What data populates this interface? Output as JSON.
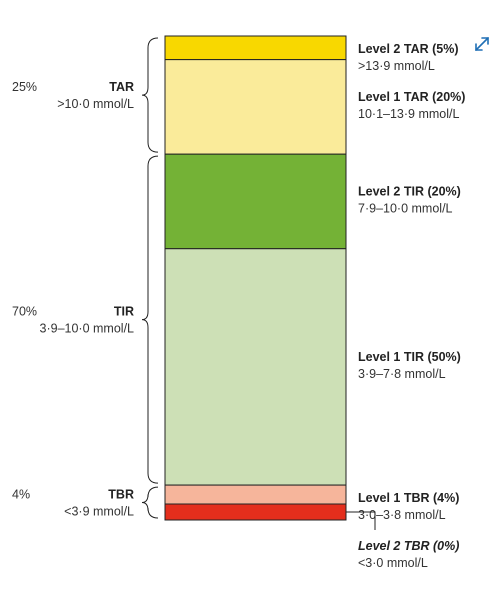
{
  "chart_data": {
    "type": "stacked-bar",
    "unit": "mmol/L",
    "levels": [
      {
        "name": "Level 2 TAR (5%)",
        "range": ">13·9 mmol/L",
        "value": 5,
        "color": "#f8d800",
        "italic": false
      },
      {
        "name": "Level 1 TAR (20%)",
        "range": "10·1–13·9 mmol/L",
        "value": 20,
        "color": "#faeb9a",
        "italic": false
      },
      {
        "name": "Level 2 TIR (20%)",
        "range": "7·9–10·0 mmol/L",
        "value": 20,
        "color": "#74b236",
        "italic": false
      },
      {
        "name": "Level 1 TIR (50%)",
        "range": "3·9–7·8 mmol/L",
        "value": 50,
        "color": "#cde0b6",
        "italic": false
      },
      {
        "name": "Level 1 TBR (4%)",
        "range": "3·0–3·8 mmol/L",
        "value": 4,
        "color": "#f6b59b",
        "italic": false
      },
      {
        "name": "Level 2 TBR (0%)",
        "range": "<3·0 mmol/L",
        "value": 0,
        "color": "#e42e1c",
        "italic": true
      }
    ],
    "groups": [
      {
        "pct": "25%",
        "name": "TAR",
        "range": ">10·0 mmol/L",
        "value": 25
      },
      {
        "pct": "70%",
        "name": "TIR",
        "range": "3·9–10·0 mmol/L",
        "value": 70
      },
      {
        "pct": "4%",
        "name": "TBR",
        "range": "<3·9 mmol/L",
        "value": 4
      }
    ]
  },
  "icons": {
    "expand": "expand-diagonal-arrows-icon",
    "accent": "#1f6fb5"
  }
}
